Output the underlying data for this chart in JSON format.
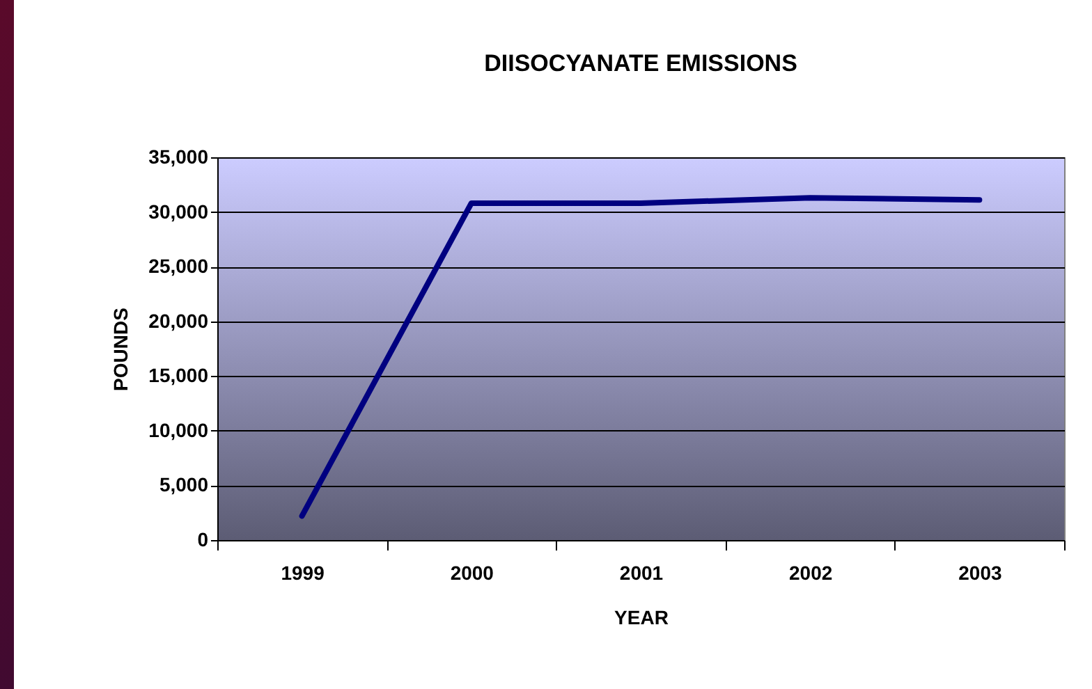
{
  "chart_data": {
    "type": "line",
    "title": "DIISOCYANATE EMISSIONS",
    "xlabel": "YEAR",
    "ylabel": "POUNDS",
    "categories": [
      "1999",
      "2000",
      "2001",
      "2002",
      "2003"
    ],
    "series": [
      {
        "color": "#000080",
        "values": [
          2200,
          30800,
          30800,
          31300,
          31100
        ]
      }
    ],
    "ylim": [
      0,
      35000
    ],
    "yticks": [
      0,
      {
        "value": 5000,
        "label": "5,000"
      },
      {
        "value": 10000,
        "label": "10,000"
      },
      {
        "value": 15000,
        "label": "15,000"
      },
      {
        "value": 20000,
        "label": "20,000"
      },
      {
        "value": 25000,
        "label": "25,000"
      },
      {
        "value": 30000,
        "label": "30,000"
      },
      {
        "value": 35000,
        "label": "35,000"
      }
    ],
    "grid": "y",
    "legend": false,
    "marker": "none",
    "line_style": "solid"
  }
}
